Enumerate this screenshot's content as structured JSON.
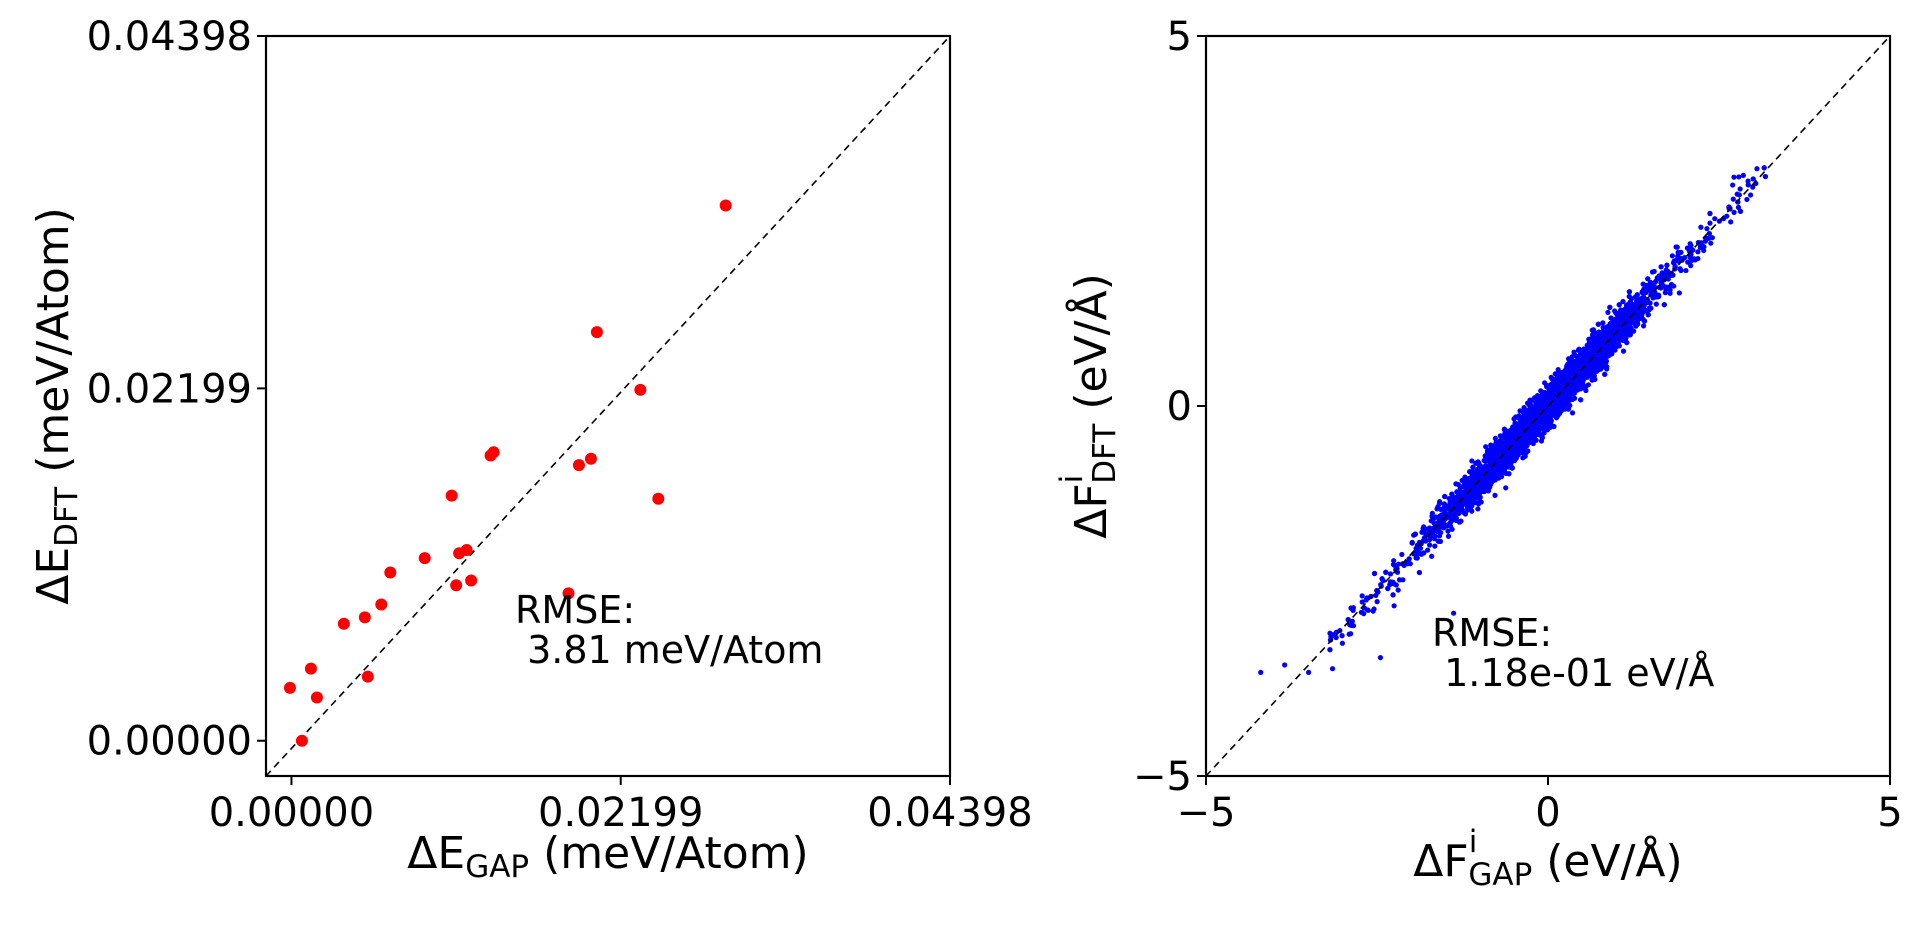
{
  "chart_data": [
    {
      "type": "scatter",
      "title": "",
      "xlabel": {
        "prefix": "ΔE",
        "sub": "GAP",
        "suffix": " (meV/Atom)"
      },
      "ylabel": {
        "prefix": "ΔE",
        "sub": "DFT",
        "suffix": " (meV/Atom)"
      },
      "xlim": [
        -0.0017,
        0.04398
      ],
      "ylim": [
        -0.0022,
        0.04398
      ],
      "xticks": [
        0.0,
        0.02199,
        0.04398
      ],
      "yticks": [
        0.0,
        0.02199,
        0.04398
      ],
      "xtick_labels": [
        "0.00000",
        "0.02199",
        "0.04398"
      ],
      "ytick_labels": [
        "0.00000",
        "0.02199",
        "0.04398"
      ],
      "annotation": [
        "RMSE:",
        " 3.81 meV/Atom"
      ],
      "diagonal": true,
      "grid": false,
      "marker_color": "#ff0000",
      "series": [
        {
          "x": [
            0.0007,
            -0.0001,
            0.0013,
            0.0017,
            0.0035,
            0.0051,
            0.0049,
            0.006,
            0.0066,
            0.0089,
            0.0107,
            0.011,
            0.0112,
            0.0117,
            0.012,
            0.0133,
            0.0135,
            0.0185,
            0.0192,
            0.02,
            0.0204,
            0.0233,
            0.0245,
            0.029
          ],
          "y": [
            0.0,
            0.0033,
            0.0045,
            0.0027,
            0.0073,
            0.004,
            0.0077,
            0.0085,
            0.0105,
            0.0114,
            0.0153,
            0.0097,
            0.0117,
            0.0119,
            0.01,
            0.0178,
            0.018,
            0.0092,
            0.0172,
            0.0176,
            0.0255,
            0.0219,
            0.0151,
            0.0334
          ]
        }
      ]
    },
    {
      "type": "scatter",
      "title": "",
      "xlabel": {
        "prefix": "ΔF",
        "sup": "i",
        "sub": "GAP",
        "suffix": " (eV/Å)"
      },
      "ylabel": {
        "prefix": "ΔF",
        "sup": "i",
        "sub": "DFT",
        "suffix": " (eV/Å)"
      },
      "xlim": [
        -5,
        5
      ],
      "ylim": [
        -5,
        5
      ],
      "xticks": [
        -5,
        0,
        5
      ],
      "yticks": [
        -5,
        0,
        5
      ],
      "xtick_labels": [
        "−5",
        "0",
        "5"
      ],
      "ytick_labels": [
        "−5",
        "0",
        "5"
      ],
      "annotation": [
        "RMSE:",
        " 1.18e-01 eV/Å"
      ],
      "diagonal": true,
      "grid": false,
      "marker_color": "#0000ff",
      "distribution": {
        "n": 4500,
        "x_range": [
          -4.2,
          3.5
        ],
        "rmse": 0.118
      },
      "outliers": {
        "x": [
          -4.2,
          -3.85,
          -3.5,
          -3.15,
          -2.45,
          -2.25,
          -1.38
        ],
        "y": [
          -3.6,
          -3.5,
          -3.6,
          -3.55,
          -3.4,
          -2.7,
          -2.8
        ]
      }
    }
  ]
}
